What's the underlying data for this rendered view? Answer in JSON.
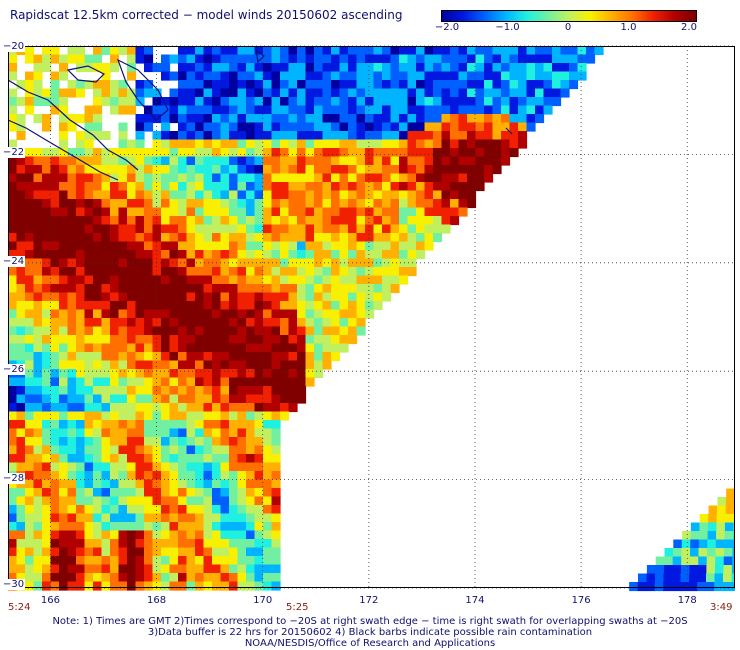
{
  "title": "Rapidscat 12.5km corrected − model winds 20150602 ascending",
  "colorbar": {
    "colors": [
      "#0000a0",
      "#0018e0",
      "#0060ff",
      "#00b4ff",
      "#20f0e0",
      "#70f0a0",
      "#c0f060",
      "#f8f000",
      "#ffb000",
      "#ff7000",
      "#f02000",
      "#b00000",
      "#800000"
    ],
    "tick_labels": [
      "−2.0",
      "−1.0",
      "0",
      "1.0",
      "2.0"
    ],
    "range": [
      -2.0,
      2.0
    ]
  },
  "axes": {
    "y_tick_labels": [
      "−20",
      "−22",
      "−24",
      "−26",
      "−28",
      "−30"
    ],
    "x_tick_labels": [
      "166",
      "168",
      "170",
      "172",
      "174",
      "176",
      "178"
    ],
    "lat_range": [
      -30,
      -20
    ],
    "lon_range": [
      165.2,
      178.9
    ],
    "grid": true
  },
  "time_labels": {
    "left": "5:24",
    "center": "5:25",
    "right": "3:49"
  },
  "notes": [
    "Note: 1) Times are GMT 2)Times correspond to −20S at right swath edge − time is right swath for overlapping swaths at −20S",
    "3)Data buffer is 22 hrs for 20150602 4) Black barbs indicate possible rain contamination",
    "NOAA/NESDIS/Office of Research and Applications"
  ],
  "chart_data": {
    "type": "heatmap",
    "title": "Rapidscat 12.5km corrected − model winds 20150602 ascending",
    "xlabel": "",
    "ylabel": "",
    "x_ticks": [
      166,
      168,
      170,
      172,
      174,
      176,
      178
    ],
    "y_ticks": [
      -20,
      -22,
      -24,
      -26,
      -28,
      -30
    ],
    "xlim": [
      165.2,
      178.9
    ],
    "ylim": [
      -30,
      -20
    ],
    "value_range": [
      -2.0,
      2.0
    ],
    "regions": [
      {
        "lon": [
          165.2,
          170.5
        ],
        "lat": [
          -26.2,
          -22.2
        ],
        "value": 2.0
      },
      {
        "lon": [
          173.0,
          174.8
        ],
        "lat": [
          -23.0,
          -21.5
        ],
        "value": 1.8
      },
      {
        "lon": [
          168.5,
          174.5
        ],
        "lat": [
          -21.5,
          -20.0
        ],
        "value": -1.2
      },
      {
        "lon": [
          165.2,
          169.0
        ],
        "lat": [
          -30.0,
          -26.5
        ],
        "value": 0.3
      },
      {
        "lon": [
          176.8,
          178.9
        ],
        "lat": [
          -30.0,
          -28.5
        ],
        "value": -0.8
      }
    ]
  }
}
